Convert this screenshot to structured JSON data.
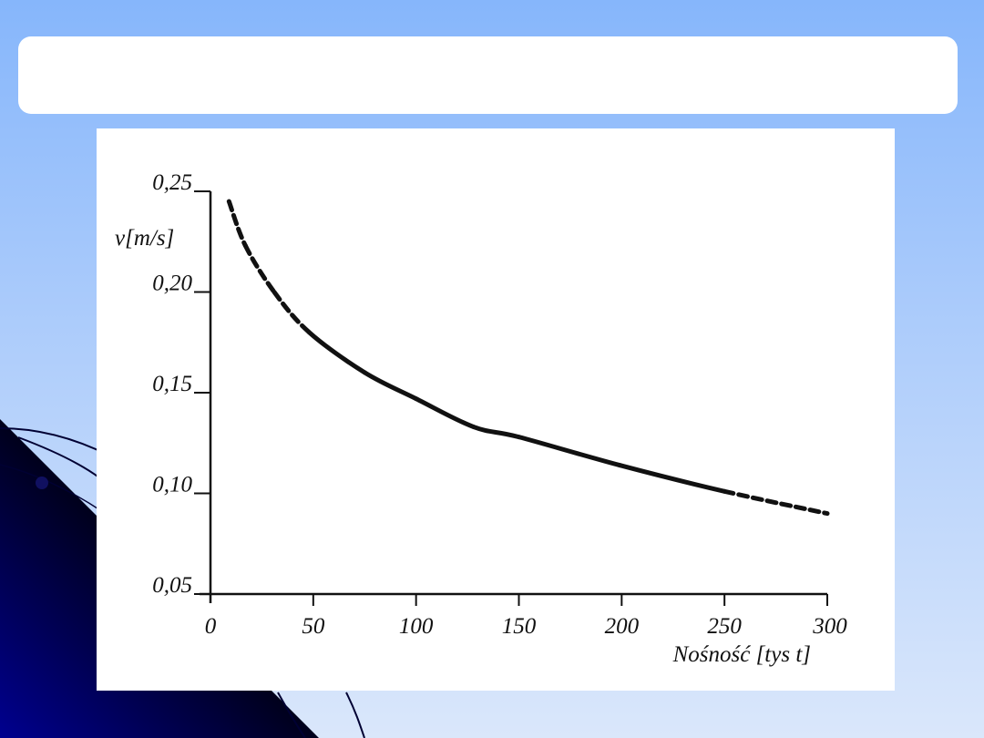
{
  "slide": {
    "title": ""
  },
  "colors": {
    "background_top": "#86b6fb",
    "background_bottom": "#dae7fb",
    "curve": "#111111",
    "decoration": "#000066"
  },
  "chart_data": {
    "type": "line",
    "title": "",
    "xlabel": "Nośność [tys t]",
    "ylabel": "v[m/s]",
    "xlim": [
      0,
      300
    ],
    "ylim": [
      0.05,
      0.25
    ],
    "x_ticks": [
      0,
      50,
      100,
      150,
      200,
      250,
      300
    ],
    "x_tick_labels": [
      "0",
      "50",
      "100",
      "150",
      "200",
      "250",
      "300"
    ],
    "y_ticks": [
      0.05,
      0.1,
      0.15,
      0.2,
      0.25
    ],
    "y_tick_labels": [
      "0,05",
      "0,10",
      "0,15",
      "0,20",
      "0,25"
    ],
    "grid": false,
    "legend": "none",
    "series": [
      {
        "x": [
          9,
          17,
          31,
          48,
          75,
          100,
          128,
          150,
          199,
          250,
          300
        ],
        "y": [
          0.245,
          0.223,
          0.2,
          0.18,
          0.16,
          0.147,
          0.133,
          0.128,
          0.114,
          0.101,
          0.09
        ],
        "dashed_ranges": [
          [
            9,
            45
          ],
          [
            250,
            300
          ]
        ]
      }
    ]
  }
}
